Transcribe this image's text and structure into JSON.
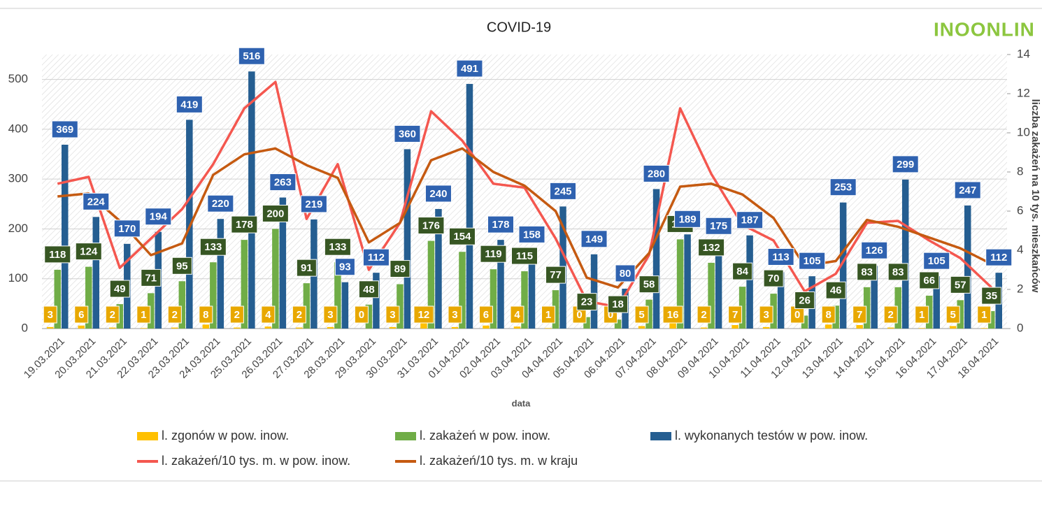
{
  "chart_data": {
    "type": "bar",
    "title": "COVID-19",
    "logo": "INOONLIN",
    "x_label": "data",
    "y2_label": "liczba zakażeń na 10 tys. mieszkańców",
    "categories": [
      "19.03.2021",
      "20.03.2021",
      "21.03.2021",
      "22.03.2021",
      "23.03.2021",
      "24.03.2021",
      "25.03.2021",
      "26.03.2021",
      "27.03.2021",
      "28.03.2021",
      "29.03.2021",
      "30.03.2021",
      "31.03.2021",
      "01.04.2021",
      "02.04.2021",
      "03.04.2021",
      "04.04.2021",
      "05.04.2021",
      "06.04.2021",
      "07.04.2021",
      "08.04.2021",
      "09.04.2021",
      "10.04.2021",
      "11.04.2021",
      "12.04.2021",
      "13.04.2021",
      "14.04.2021",
      "15.04.2021",
      "16.04.2021",
      "17.04.2021",
      "18.04.2021"
    ],
    "series": [
      {
        "name": "l. zgonów w pow. inow.",
        "type": "bar",
        "color": "#ffc000",
        "label_color": "#e8a800",
        "values": [
          3,
          6,
          2,
          1,
          2,
          8,
          2,
          4,
          2,
          3,
          0,
          3,
          12,
          3,
          6,
          4,
          1,
          0,
          0,
          5,
          16,
          2,
          7,
          3,
          0,
          8,
          7,
          2,
          1,
          5,
          1
        ]
      },
      {
        "name": "l. zakażeń w pow. inow.",
        "type": "bar",
        "color": "#70ad47",
        "label_color": "#375623",
        "values": [
          118,
          124,
          49,
          71,
          95,
          133,
          178,
          200,
          91,
          133,
          48,
          89,
          176,
          154,
          119,
          115,
          77,
          23,
          18,
          58,
          179,
          132,
          84,
          70,
          26,
          46,
          83,
          83,
          66,
          57,
          35
        ]
      },
      {
        "name": "l. wykonanych testów w pow. inow.",
        "type": "bar",
        "color": "#255e91",
        "label_color": "#2f62b0",
        "values": [
          369,
          224,
          170,
          194,
          419,
          220,
          516,
          263,
          219,
          93,
          112,
          360,
          240,
          491,
          178,
          158,
          245,
          149,
          80,
          280,
          189,
          175,
          187,
          113,
          105,
          253,
          126,
          299,
          105,
          247,
          112
        ]
      },
      {
        "name": "l. zakażeń/10 tys. m. w pow. inow.",
        "type": "line",
        "axis": "y2",
        "color": "#f4574f",
        "values": [
          7.4,
          7.75,
          3.1,
          4.6,
          6.1,
          8.4,
          11.25,
          12.6,
          5.6,
          8.4,
          3.0,
          5.4,
          11.1,
          9.6,
          7.4,
          7.2,
          4.6,
          1.4,
          1.1,
          3.75,
          11.25,
          7.9,
          5.3,
          4.5,
          1.9,
          2.8,
          5.4,
          5.5,
          4.5,
          3.6,
          2.1
        ]
      },
      {
        "name": "l. zakażeń/10 tys. m. w kraju",
        "type": "line",
        "axis": "y2",
        "color": "#c55a11",
        "values": [
          6.75,
          6.9,
          5.5,
          3.75,
          4.35,
          7.85,
          8.9,
          9.2,
          8.35,
          7.7,
          4.4,
          5.4,
          8.6,
          9.2,
          8.0,
          7.3,
          6.0,
          2.6,
          2.1,
          3.85,
          7.25,
          7.4,
          6.85,
          5.65,
          3.2,
          3.45,
          5.55,
          5.2,
          4.65,
          4.1,
          3.3
        ]
      }
    ],
    "ylim": [
      0,
      550
    ],
    "yticks": [
      0,
      100,
      200,
      300,
      400,
      500
    ],
    "y2lim": [
      0,
      14
    ],
    "y2ticks": [
      0,
      2,
      4,
      6,
      8,
      10,
      12,
      14
    ],
    "grid": true
  }
}
